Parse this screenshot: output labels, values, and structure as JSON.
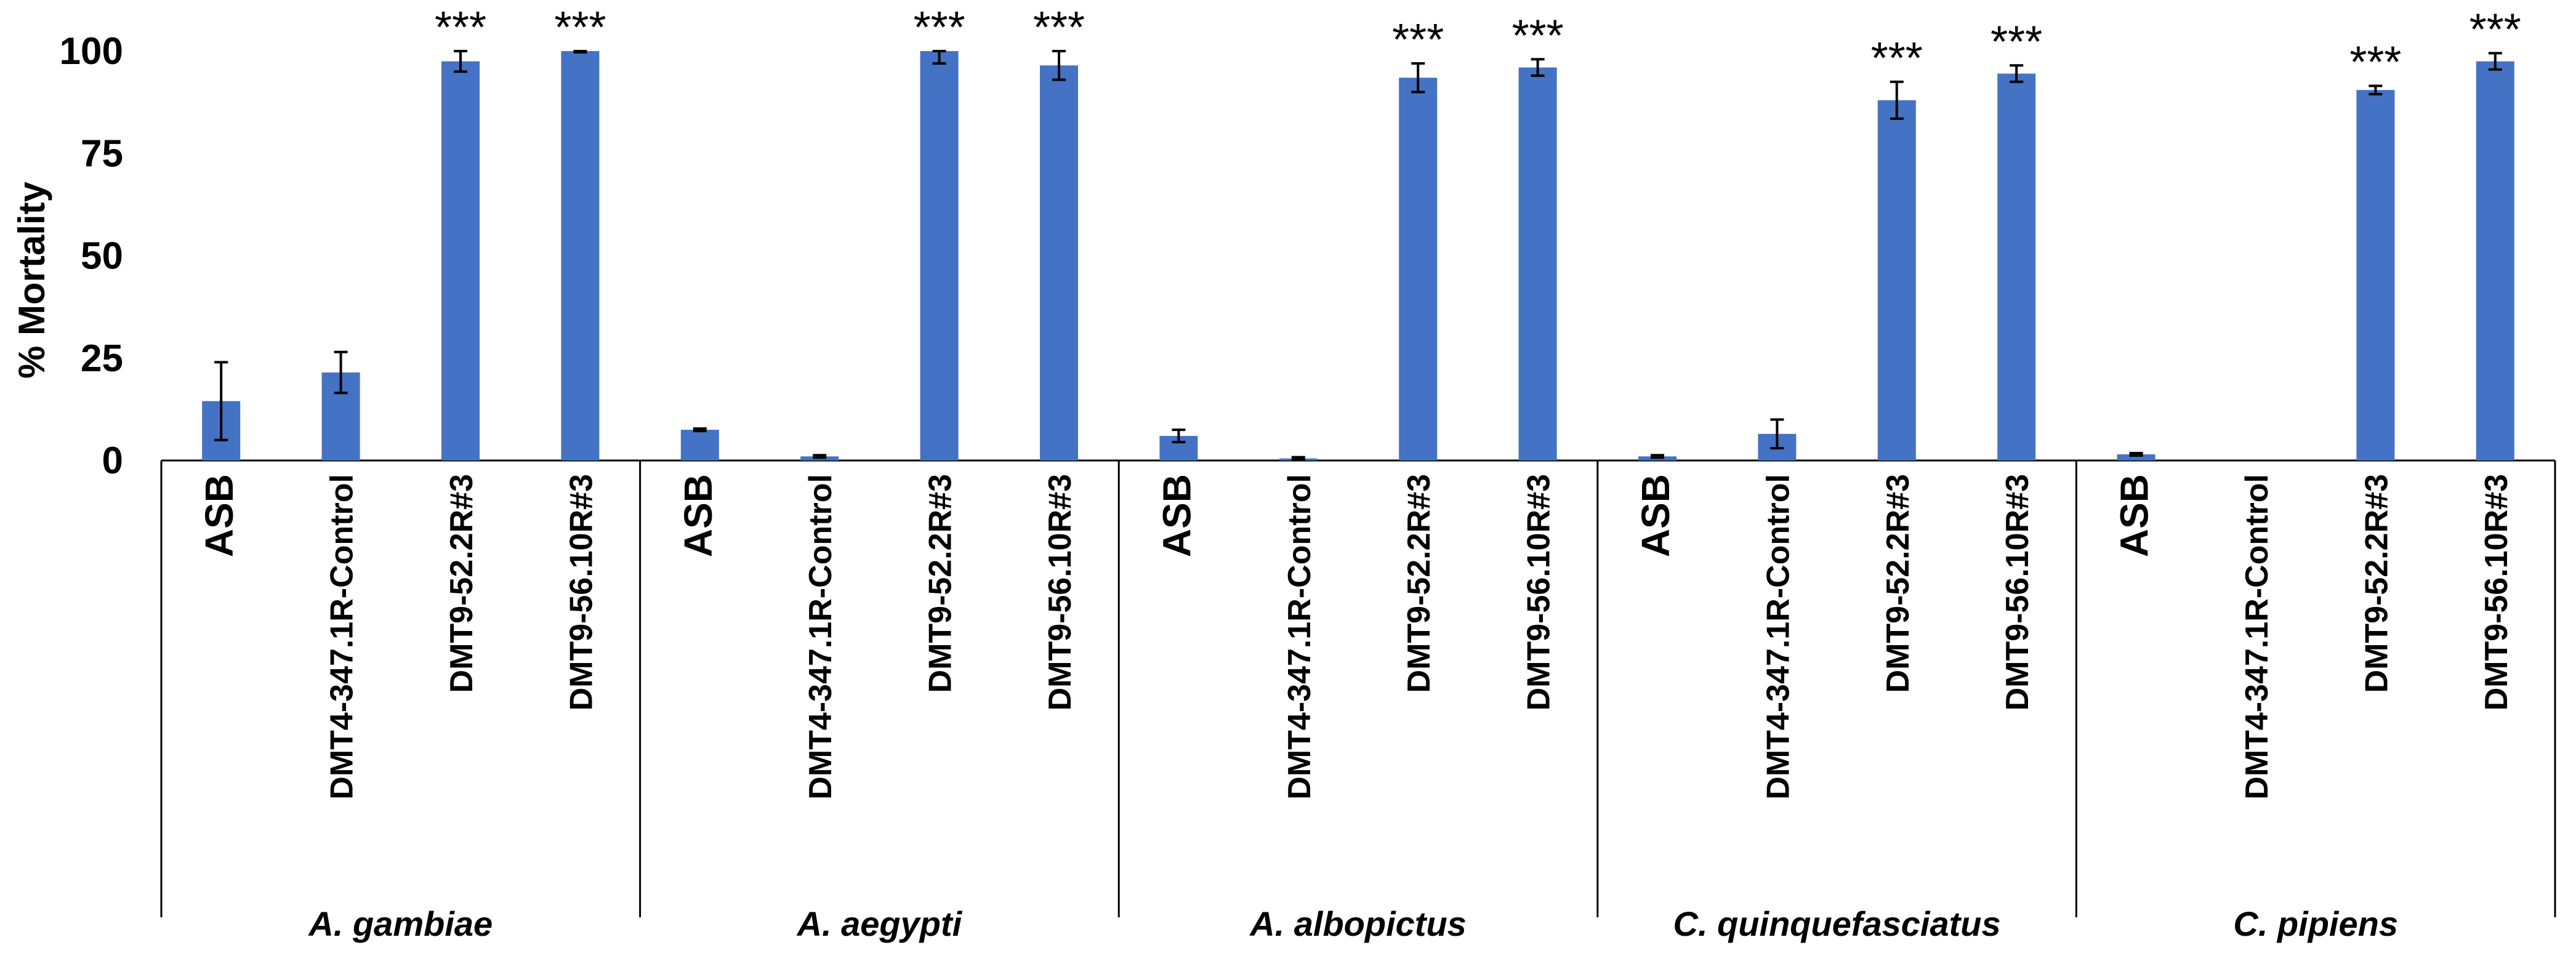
{
  "chart_data": {
    "type": "bar",
    "ylabel": "% Mortality",
    "ylim": [
      0,
      100
    ],
    "yticks": [
      0,
      25,
      50,
      75,
      100
    ],
    "bar_color": "#4472c4",
    "groups": [
      {
        "name": "A. gambiae",
        "categories": [
          "ASB",
          "DMT4-347.1R-Control",
          "DMT9-52.2R#3",
          "DMT9-56.10R#3"
        ],
        "values": [
          14.5,
          21.5,
          97.5,
          100
        ],
        "errors": [
          9.5,
          5,
          2.5,
          0.3
        ],
        "significance": [
          "",
          "",
          "***",
          "***"
        ]
      },
      {
        "name": "A. aegypti",
        "categories": [
          "ASB",
          "DMT4-347.1R-Control",
          "DMT9-52.2R#3",
          "DMT9-56.10R#3"
        ],
        "values": [
          7.5,
          1,
          100,
          96.5
        ],
        "errors": [
          0.3,
          0.3,
          3,
          3.5
        ],
        "significance": [
          "",
          "",
          "***",
          "***"
        ]
      },
      {
        "name": "A. albopictus",
        "categories": [
          "ASB",
          "DMT4-347.1R-Control",
          "DMT9-52.2R#3",
          "DMT9-56.10R#3"
        ],
        "values": [
          6,
          0.5,
          93.5,
          96
        ],
        "errors": [
          1.5,
          0.3,
          3.5,
          2
        ],
        "significance": [
          "",
          "",
          "***",
          "***"
        ]
      },
      {
        "name": "C. quinquefasciatus",
        "categories": [
          "ASB",
          "DMT4-347.1R-Control",
          "DMT9-52.2R#3",
          "DMT9-56.10R#3"
        ],
        "values": [
          1,
          6.5,
          88,
          94.5
        ],
        "errors": [
          0.3,
          3.5,
          4.5,
          2
        ],
        "significance": [
          "",
          "",
          "***",
          "***"
        ]
      },
      {
        "name": "C. pipiens",
        "categories": [
          "ASB",
          "DMT4-347.1R-Control",
          "DMT9-52.2R#3",
          "DMT9-56.10R#3"
        ],
        "values": [
          1.5,
          0,
          90.5,
          97.5
        ],
        "errors": [
          0.3,
          0,
          1,
          2
        ],
        "significance": [
          "",
          "",
          "***",
          "***"
        ]
      }
    ]
  }
}
